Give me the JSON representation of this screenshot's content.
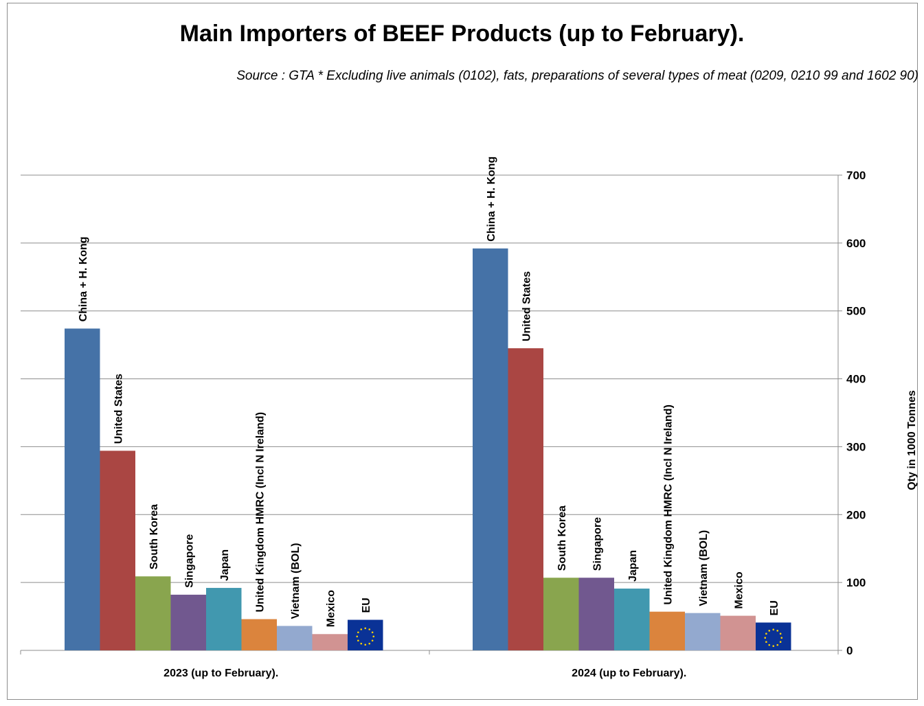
{
  "chart_data": {
    "type": "bar",
    "title": "Main Importers of BEEF Products (up to February).",
    "subtitle": "Source : GTA * Excluding live animals (0102), fats, preparations  of several types of meat (0209, 0210 99 and 1602 90)",
    "categories": [
      "2023 (up to February).",
      "2024 (up to February)."
    ],
    "series": [
      {
        "name": "China + H. Kong",
        "color": "#4572A7",
        "values": [
          474,
          592
        ]
      },
      {
        "name": "United States",
        "color": "#AA4643",
        "values": [
          294,
          445
        ]
      },
      {
        "name": "South Korea",
        "color": "#89A54E",
        "values": [
          109,
          107
        ]
      },
      {
        "name": "Singapore",
        "color": "#71588F",
        "values": [
          82,
          107
        ]
      },
      {
        "name": "Japan",
        "color": "#4198AF",
        "values": [
          92,
          91
        ]
      },
      {
        "name": "United Kingdom HMRC (Incl N Ireland)",
        "color": "#DB843D",
        "values": [
          46,
          57
        ]
      },
      {
        "name": "Vietnam (BOL)",
        "color": "#93A9CF",
        "values": [
          36,
          55
        ]
      },
      {
        "name": "Mexico",
        "color": "#D19392",
        "values": [
          24,
          51
        ]
      },
      {
        "name": "EU",
        "color": "#0A3296",
        "values": [
          45,
          41
        ]
      }
    ],
    "ylabel": "Qty in 1000 Tonnes",
    "ylim": [
      0,
      700
    ],
    "yticks": [
      0,
      100,
      200,
      300,
      400,
      500,
      600,
      700
    ],
    "yaxis_side": "right",
    "grid": true,
    "legend": "none (series names printed above bars)"
  }
}
